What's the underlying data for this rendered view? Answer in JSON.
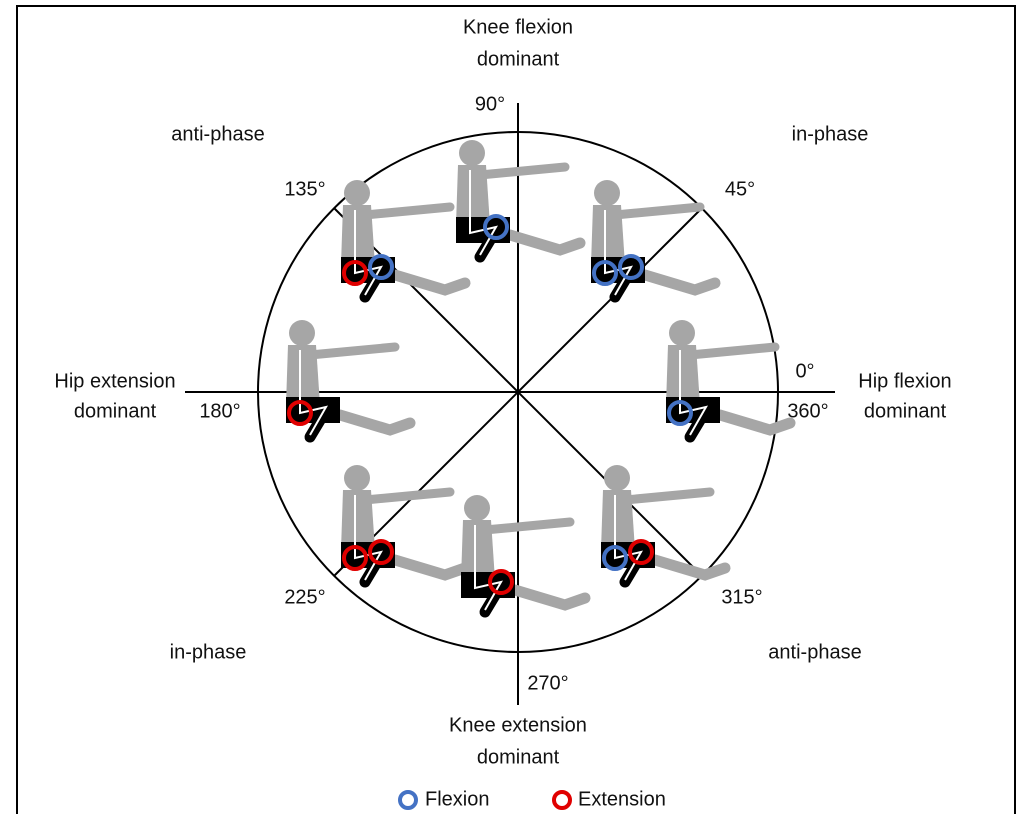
{
  "axis_labels": {
    "top": [
      "Knee flexion",
      "dominant"
    ],
    "bottom": [
      "Knee extension",
      "dominant"
    ],
    "left": [
      "Hip extension",
      "dominant"
    ],
    "right": [
      "Hip flexion",
      "dominant"
    ]
  },
  "angles": [
    "0°",
    "45°",
    "90°",
    "135°",
    "180°",
    "225°",
    "270°",
    "315°",
    "360°"
  ],
  "quadrant_labels": {
    "top_left": "anti-phase",
    "top_right": "in-phase",
    "bottom_left": "in-phase",
    "bottom_right": "anti-phase"
  },
  "legend": [
    "Flexion",
    "Extension"
  ]
}
